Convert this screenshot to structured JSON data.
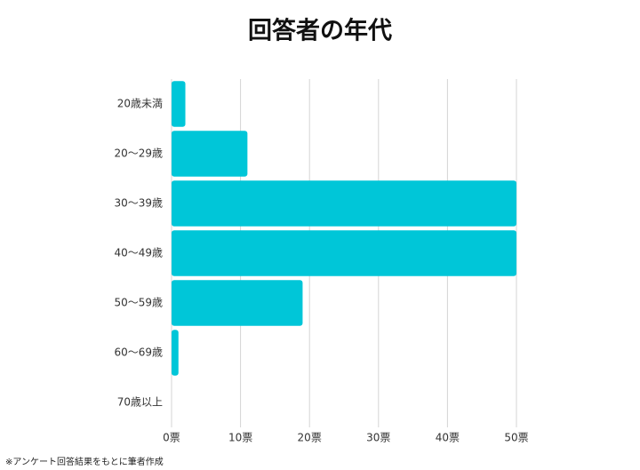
{
  "chart_data": {
    "type": "bar",
    "orientation": "horizontal",
    "title": "回答者の年代",
    "categories": [
      "20歳未満",
      "20～29歳",
      "30～39歳",
      "40～49歳",
      "50～59歳",
      "60～69歳",
      "70歳以上"
    ],
    "values": [
      2,
      11,
      50,
      50,
      19,
      1,
      0
    ],
    "color": "#00c6d8",
    "xlim": [
      0,
      50
    ],
    "xticks": [
      {
        "value": 0,
        "label": "0票"
      },
      {
        "value": 10,
        "label": "10票"
      },
      {
        "value": 20,
        "label": "20票"
      },
      {
        "value": 30,
        "label": "30票"
      },
      {
        "value": 40,
        "label": "40票"
      },
      {
        "value": 50,
        "label": "50票"
      }
    ],
    "grid": true,
    "footnote": "※アンケート回答結果をもとに筆者作成"
  }
}
